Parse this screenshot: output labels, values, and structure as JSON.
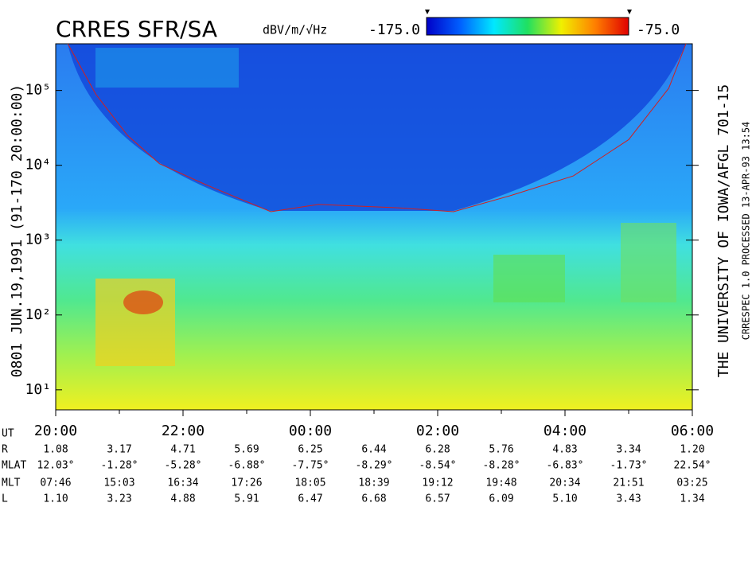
{
  "chart_data": {
    "type": "spectrogram",
    "title": "CRRES SFR/SA",
    "colorbar": {
      "unit": "dBV/m/√Hz",
      "min": {
        "value": -175,
        "label": "-175.0"
      },
      "max": {
        "value": -75,
        "label": "-75.0"
      },
      "colors": [
        "#0000c8",
        "#0060ff",
        "#00e8ff",
        "#20e060",
        "#f0f000",
        "#ff8000",
        "#e00000"
      ]
    },
    "left_label": "0801  JUN.19,1991  (91-170 20:00:00)",
    "right_label": "THE UNIVERSITY OF IOWA/AFGL 701-15",
    "right_note": "CRRESPEC 1.0   PROCESSED 13-APR-93  13:54",
    "x_label": "UT",
    "xlim": [
      0,
      10
    ],
    "xticks": [
      {
        "value": 0,
        "label": "20:00"
      },
      {
        "value": 2,
        "label": "22:00"
      },
      {
        "value": 4,
        "label": "00:00"
      },
      {
        "value": 6,
        "label": "02:00"
      },
      {
        "value": 8,
        "label": "04:00"
      },
      {
        "value": 10,
        "label": "06:00"
      }
    ],
    "xminor": [
      1,
      3,
      5,
      7,
      9
    ],
    "log_y": true,
    "ylim": [
      5.4,
      420000
    ],
    "yticks": [
      {
        "value": 10,
        "label": "10¹"
      },
      {
        "value": 100,
        "label": "10²"
      },
      {
        "value": 1000,
        "label": "10³"
      },
      {
        "value": 10000,
        "label": "10⁴"
      },
      {
        "value": 100000,
        "label": "10⁵"
      }
    ],
    "series": [
      {
        "name": "cutoff",
        "color": "#d02020",
        "x": [
          0.19,
          0.63,
          1.13,
          1.63,
          2.38,
          3.38,
          4.13,
          5.38,
          6.25,
          7.13,
          8.13,
          9.0,
          9.63,
          9.9
        ],
        "values": [
          420000,
          89000,
          25000,
          10500,
          5400,
          2400,
          3000,
          2700,
          2400,
          3900,
          7200,
          22000,
          107000,
          420000
        ]
      }
    ]
  },
  "ephemeris": {
    "row_labels": [
      "R",
      "MLAT",
      "MLT",
      "L"
    ],
    "rows": [
      [
        "1.08",
        "3.17",
        "4.71",
        "5.69",
        "6.25",
        "6.44",
        "6.28",
        "5.76",
        "4.83",
        "3.34",
        "1.20"
      ],
      [
        "12.03°",
        "-1.28°",
        "-5.28°",
        "-6.88°",
        "-7.75°",
        "-8.29°",
        "-8.54°",
        "-8.28°",
        "-6.83°",
        "-1.73°",
        "22.54°"
      ],
      [
        "07:46",
        "15:03",
        "16:34",
        "17:26",
        "18:05",
        "18:39",
        "19:12",
        "19:48",
        "20:34",
        "21:51",
        "03:25"
      ],
      [
        "1.10",
        "3.23",
        "4.88",
        "5.91",
        "6.47",
        "6.68",
        "6.57",
        "6.09",
        "5.10",
        "3.43",
        "1.34"
      ]
    ]
  }
}
